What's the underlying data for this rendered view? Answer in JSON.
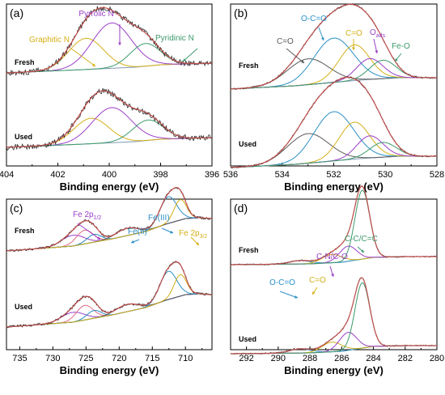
{
  "figure": {
    "colors": {
      "raw": "#2b2b2b",
      "envelope": "#c0504d",
      "background": "#7f9ab4",
      "comp1": "#d4b017",
      "comp2": "#9b3fc8",
      "comp3": "#3d9a6b",
      "comp4": "#2a8fc6",
      "comp5": "#5a5a5a",
      "comp6": "#e06a8a"
    }
  },
  "chart_data": [
    {
      "id": "a",
      "type": "line",
      "panel_label": "(a)",
      "xlabel": "Binding energy (eV)",
      "ylabel": "",
      "xlim": [
        404,
        396
      ],
      "x_ticks": [
        "404",
        "402",
        "400",
        "398",
        "396"
      ],
      "x_tick_values": [
        404,
        402,
        400,
        398,
        396
      ],
      "curve_labels": [
        "Fresh",
        "Used"
      ],
      "peak_labels": [
        {
          "text": "Graphitic N",
          "sub": "",
          "color": "comp1"
        },
        {
          "text": "Pyrrolic N",
          "sub": "",
          "color": "comp2"
        },
        {
          "text": "Pyridinic N",
          "sub": "",
          "color": "comp3"
        }
      ],
      "series": [
        {
          "curve": "Fresh",
          "component": "Graphitic N",
          "center": 400.9,
          "height": 0.55,
          "fwhm": 1.6
        },
        {
          "curve": "Fresh",
          "component": "Pyrrolic N",
          "center": 399.9,
          "height": 0.8,
          "fwhm": 1.8
        },
        {
          "curve": "Fresh",
          "component": "Pyridinic N",
          "center": 398.6,
          "height": 0.4,
          "fwhm": 1.4
        },
        {
          "curve": "Used",
          "component": "Graphitic N",
          "center": 400.7,
          "height": 0.45,
          "fwhm": 1.6
        },
        {
          "curve": "Used",
          "component": "Pyrrolic N",
          "center": 399.9,
          "height": 0.62,
          "fwhm": 1.8
        },
        {
          "curve": "Used",
          "component": "Pyridinic N",
          "center": 398.5,
          "height": 0.36,
          "fwhm": 1.4
        }
      ]
    },
    {
      "id": "b",
      "type": "line",
      "panel_label": "(b)",
      "xlabel": "Binding energy (eV)",
      "ylabel": "",
      "xlim": [
        536,
        528
      ],
      "x_ticks": [
        "536",
        "534",
        "532",
        "530",
        "528"
      ],
      "x_tick_values": [
        536,
        534,
        532,
        530,
        528
      ],
      "curve_labels": [
        "Fresh",
        "Used"
      ],
      "peak_labels": [
        {
          "text": "C=O",
          "sub": "",
          "color": "comp5"
        },
        {
          "text": "O-C=O",
          "sub": "",
          "color": "comp4"
        },
        {
          "text": "C=O",
          "sub": "",
          "color": "comp1"
        },
        {
          "text": "O",
          "sub": "ads",
          "color": "comp2"
        },
        {
          "text": "Fe-O",
          "sub": "",
          "color": "comp3"
        }
      ],
      "series": [
        {
          "curve": "Fresh",
          "component": "C=O",
          "center": 533.0,
          "height": 0.42,
          "fwhm": 1.9
        },
        {
          "curve": "Fresh",
          "component": "O-C=O",
          "center": 532.0,
          "height": 0.72,
          "fwhm": 1.8
        },
        {
          "curve": "Fresh",
          "component": "C=O",
          "center": 531.2,
          "height": 0.58,
          "fwhm": 1.4
        },
        {
          "curve": "Fresh",
          "component": "O ads",
          "center": 530.6,
          "height": 0.34,
          "fwhm": 1.2
        },
        {
          "curve": "Fresh",
          "component": "Fe-O",
          "center": 530.1,
          "height": 0.3,
          "fwhm": 1.2
        },
        {
          "curve": "Used",
          "component": "C=O",
          "center": 533.0,
          "height": 0.48,
          "fwhm": 1.9
        },
        {
          "curve": "Used",
          "component": "O-C=O",
          "center": 532.0,
          "height": 0.8,
          "fwhm": 1.8
        },
        {
          "curve": "Used",
          "component": "C=O",
          "center": 531.2,
          "height": 0.6,
          "fwhm": 1.4
        },
        {
          "curve": "Used",
          "component": "O ads",
          "center": 530.6,
          "height": 0.36,
          "fwhm": 1.2
        },
        {
          "curve": "Used",
          "component": "Fe-O",
          "center": 530.1,
          "height": 0.24,
          "fwhm": 1.2
        }
      ]
    },
    {
      "id": "c",
      "type": "line",
      "panel_label": "(c)",
      "xlabel": "Binding energy (eV)",
      "ylabel": "",
      "xlim": [
        737,
        706
      ],
      "x_ticks": [
        "735",
        "730",
        "725",
        "720",
        "715",
        "710"
      ],
      "x_tick_values": [
        735,
        730,
        725,
        720,
        715,
        710
      ],
      "curve_labels": [
        "Fresh",
        "Used"
      ],
      "peak_labels": [
        {
          "text": "Fe 2p",
          "sub": "1/2",
          "color": "comp2"
        },
        {
          "text": "Fe(II)",
          "sub": "",
          "color": "comp4"
        },
        {
          "text": "Fe(III)",
          "sub": "",
          "color": "comp4"
        },
        {
          "text": "Fe 2p",
          "sub": "3/2",
          "color": "comp1"
        }
      ],
      "series": [
        {
          "curve": "Fresh",
          "component": "Fe 2p1/2 sat",
          "center": 727.0,
          "height": 0.22,
          "fwhm": 4.0
        },
        {
          "curve": "Fresh",
          "component": "Fe 2p1/2 Fe(III)",
          "center": 725.2,
          "height": 0.28,
          "fwhm": 3.0
        },
        {
          "curve": "Fresh",
          "component": "Fe 2p1/2 Fe(II)",
          "center": 723.8,
          "height": 0.16,
          "fwhm": 2.5
        },
        {
          "curve": "Fresh",
          "component": "Fe 2p3/2 sat",
          "center": 718.8,
          "height": 0.15,
          "fwhm": 4.0
        },
        {
          "curve": "Fresh",
          "component": "Fe(III)",
          "center": 712.6,
          "height": 0.55,
          "fwhm": 3.0
        },
        {
          "curve": "Fresh",
          "component": "Fe(II)",
          "center": 710.8,
          "height": 0.42,
          "fwhm": 2.2
        },
        {
          "curve": "Used",
          "component": "Fe 2p1/2 sat",
          "center": 727.0,
          "height": 0.2,
          "fwhm": 4.0
        },
        {
          "curve": "Used",
          "component": "Fe 2p1/2 Fe(III)",
          "center": 725.2,
          "height": 0.3,
          "fwhm": 3.0
        },
        {
          "curve": "Used",
          "component": "Fe 2p1/2 Fe(II)",
          "center": 723.8,
          "height": 0.16,
          "fwhm": 2.5
        },
        {
          "curve": "Used",
          "component": "Fe 2p3/2 sat",
          "center": 718.8,
          "height": 0.15,
          "fwhm": 4.0
        },
        {
          "curve": "Used",
          "component": "Fe(III)",
          "center": 712.6,
          "height": 0.58,
          "fwhm": 3.0
        },
        {
          "curve": "Used",
          "component": "Fe(II)",
          "center": 710.8,
          "height": 0.44,
          "fwhm": 2.2
        }
      ]
    },
    {
      "id": "d",
      "type": "line",
      "panel_label": "(d)",
      "xlabel": "Binding energy (eV)",
      "ylabel": "",
      "xlim": [
        293,
        280
      ],
      "x_ticks": [
        "292",
        "290",
        "288",
        "286",
        "284",
        "282",
        "280"
      ],
      "x_tick_values": [
        292,
        290,
        288,
        286,
        284,
        282,
        280
      ],
      "curve_labels": [
        "Fresh",
        "Used"
      ],
      "peak_labels": [
        {
          "text": "O-C=O",
          "sub": "",
          "color": "comp4"
        },
        {
          "text": "C=O",
          "sub": "",
          "color": "comp1"
        },
        {
          "text": "C-N/C-O",
          "sub": "",
          "color": "comp2"
        },
        {
          "text": "C-C/C=C",
          "sub": "",
          "color": "comp3"
        }
      ],
      "series": [
        {
          "curve": "Fresh",
          "component": "O-C=O",
          "center": 288.6,
          "height": 0.05,
          "fwhm": 1.6
        },
        {
          "curve": "Fresh",
          "component": "C=O",
          "center": 286.6,
          "height": 0.12,
          "fwhm": 1.5
        },
        {
          "curve": "Fresh",
          "component": "C-N/C-O",
          "center": 285.6,
          "height": 0.22,
          "fwhm": 1.3
        },
        {
          "curve": "Fresh",
          "component": "C-C/C=C",
          "center": 284.7,
          "height": 1.0,
          "fwhm": 1.1
        },
        {
          "curve": "Used",
          "component": "O-C=O",
          "center": 288.6,
          "height": 0.06,
          "fwhm": 1.6
        },
        {
          "curve": "Used",
          "component": "C=O",
          "center": 286.6,
          "height": 0.14,
          "fwhm": 1.5
        },
        {
          "curve": "Used",
          "component": "C-N/C-O",
          "center": 285.6,
          "height": 0.26,
          "fwhm": 1.3
        },
        {
          "curve": "Used",
          "component": "C-C/C=C",
          "center": 284.7,
          "height": 0.95,
          "fwhm": 1.1
        }
      ]
    }
  ]
}
